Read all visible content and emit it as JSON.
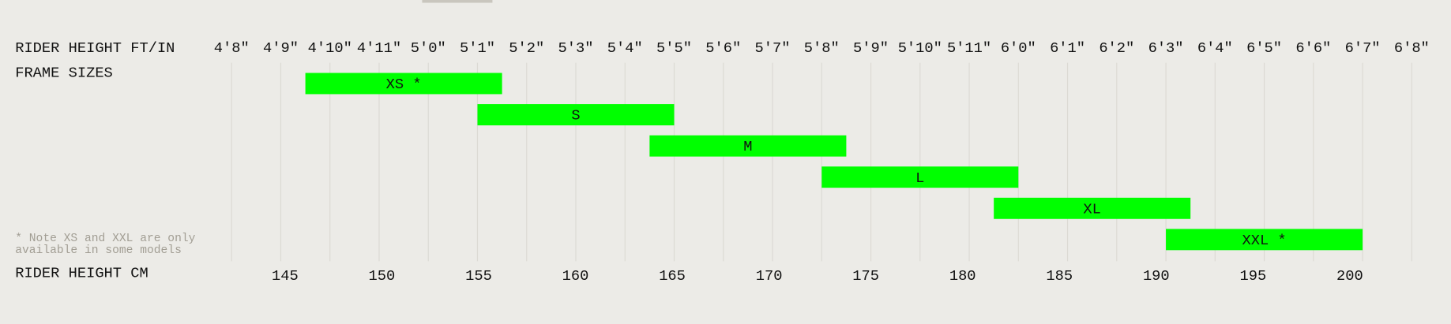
{
  "chart_data": {
    "type": "range-bar",
    "x_label": "RIDER HEIGHT FT/IN",
    "y_label": "FRAME SIZES",
    "x2_label": "RIDER HEIGHT CM",
    "note": [
      "* Note XS and XXL are only",
      "available in some models"
    ],
    "categories": [
      "XS *",
      "S",
      "M",
      "L",
      "XL",
      "XXL *"
    ],
    "ranges": [
      [
        57.5,
        61.5
      ],
      [
        61,
        65
      ],
      [
        64.5,
        68.5
      ],
      [
        68,
        72
      ],
      [
        71.5,
        75.5
      ],
      [
        75,
        79
      ]
    ],
    "color": "#00ff00",
    "xlim": [
      56,
      80
    ],
    "xticks": [
      {
        "value": 56,
        "label": "4'8\""
      },
      {
        "value": 57,
        "label": "4'9\""
      },
      {
        "value": 58,
        "label": "4'10\""
      },
      {
        "value": 59,
        "label": "4'11\""
      },
      {
        "value": 60,
        "label": "5'0\""
      },
      {
        "value": 61,
        "label": "5'1\""
      },
      {
        "value": 62,
        "label": "5'2\""
      },
      {
        "value": 63,
        "label": "5'3\""
      },
      {
        "value": 64,
        "label": "5'4\""
      },
      {
        "value": 65,
        "label": "5'5\""
      },
      {
        "value": 66,
        "label": "5'6\""
      },
      {
        "value": 67,
        "label": "5'7\""
      },
      {
        "value": 68,
        "label": "5'8\""
      },
      {
        "value": 69,
        "label": "5'9\""
      },
      {
        "value": 70,
        "label": "5'10\""
      },
      {
        "value": 71,
        "label": "5'11\""
      },
      {
        "value": 72,
        "label": "6'0\""
      },
      {
        "value": 73,
        "label": "6'1\""
      },
      {
        "value": 74,
        "label": "6'2\""
      },
      {
        "value": 75,
        "label": "6'3\""
      },
      {
        "value": 76,
        "label": "6'4\""
      },
      {
        "value": 77,
        "label": "6'5\""
      },
      {
        "value": 78,
        "label": "6'6\""
      },
      {
        "value": 79,
        "label": "6'7\""
      },
      {
        "value": 80,
        "label": "6'8\""
      }
    ],
    "x2lim": [
      142.24,
      203.2
    ],
    "x2ticks": [
      145,
      150,
      155,
      160,
      165,
      170,
      175,
      180,
      185,
      190,
      195,
      200
    ],
    "grid": true
  }
}
